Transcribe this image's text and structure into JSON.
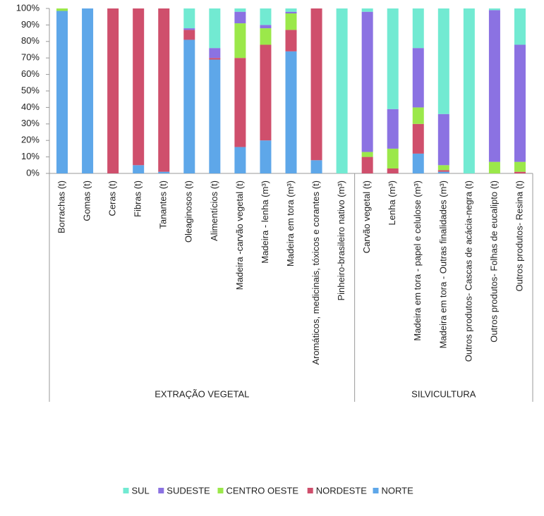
{
  "chart_data": {
    "type": "stacked-bar-100",
    "categories": [
      "Borrachas (t)",
      "Gomas  (t)",
      "Ceras (t)",
      "Fibras (t)",
      "Tanantes (t)",
      "Oleaginosos (t)",
      "Alimentícios (t)",
      "Madeira -carvão vegetal (t)",
      "Madeira - lenha  (m³)",
      "Madeira em tora (m³)",
      "Aromáticos, medicinais, tóxicos e corantes (t)",
      "Pinheiro-brasileiro nativo (m³)",
      "Carvão vegetal (t)",
      "Lenha  (m³)",
      "Madeira em tora  - papel e celulose (m³)",
      "Madeira em tora - Outras finalidades (m³)",
      "Outros produtos- Cascas de acácia-negra (t)",
      "Outros produtos- Folhas de eucalipto (t)",
      "Outros produtos- Resina (t)"
    ],
    "groups": [
      {
        "label": "EXTRAÇÃO VEGETAL",
        "size": 12
      },
      {
        "label": "SILVICULTURA",
        "size": 7
      }
    ],
    "series": [
      {
        "name": "NORTE",
        "color": "#5ea7e9",
        "values": [
          98.5,
          100,
          0,
          5,
          1,
          81,
          69,
          16,
          20,
          74,
          8,
          0,
          0,
          0,
          12,
          1,
          0,
          0,
          0
        ]
      },
      {
        "name": "NORDESTE",
        "color": "#cf4f6c",
        "values": [
          0,
          0,
          100,
          95,
          99,
          6,
          1,
          54,
          58,
          13,
          92,
          0,
          10,
          3,
          18,
          1,
          0,
          0,
          1
        ]
      },
      {
        "name": "CENTRO OESTE",
        "color": "#9be84a",
        "values": [
          1.5,
          0,
          0,
          0,
          0,
          0,
          0,
          21,
          10,
          10,
          0,
          0,
          3,
          12,
          10,
          3,
          0,
          7,
          6
        ]
      },
      {
        "name": "SUDESTE",
        "color": "#8b72e2",
        "values": [
          0,
          0,
          0,
          0,
          0,
          1,
          6,
          7,
          2,
          1,
          0,
          0,
          85,
          24,
          36,
          31,
          0,
          92,
          71
        ]
      },
      {
        "name": "SUL",
        "color": "#72ead2",
        "values": [
          0,
          0,
          0,
          0,
          0,
          12,
          24,
          2,
          10,
          2,
          0,
          100,
          2,
          61,
          24,
          64,
          100,
          1,
          22
        ]
      }
    ],
    "ylim": [
      0,
      100
    ],
    "yticks": [
      {
        "value": 0,
        "label": "0%"
      },
      {
        "value": 10,
        "label": "10%"
      },
      {
        "value": 20,
        "label": "20%"
      },
      {
        "value": 30,
        "label": "30%"
      },
      {
        "value": 40,
        "label": "40%"
      },
      {
        "value": 50,
        "label": "50%"
      },
      {
        "value": 60,
        "label": "60%"
      },
      {
        "value": 70,
        "label": "70%"
      },
      {
        "value": 80,
        "label": "80%"
      },
      {
        "value": 90,
        "label": "90%"
      },
      {
        "value": 100,
        "label": "100%"
      }
    ],
    "legend": "bottom"
  }
}
